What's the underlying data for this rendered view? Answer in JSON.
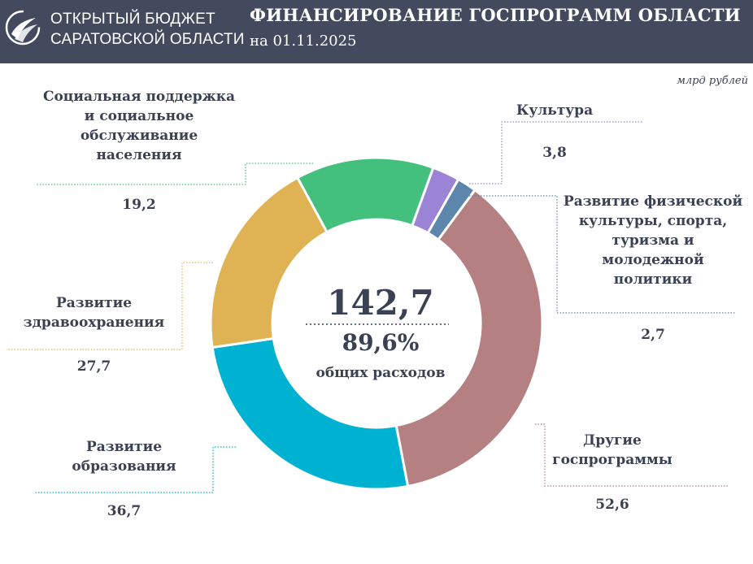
{
  "header": {
    "brand_line1": "ОТКРЫТЫЙ БЮДЖЕТ",
    "brand_line2": "САРАТОВСКОЙ ОБЛАСТИ",
    "title": "ФИНАНСИРОВАНИЕ ГОСПРОГРАММ ОБЛАСТИ",
    "subtitle": "на 01.11.2025",
    "logo_icon": "swirl-logo-icon",
    "background_color": "#434a5e"
  },
  "center": {
    "total": "142,7",
    "share": "89,6%",
    "share_caption": "общих расходов"
  },
  "chart_data": {
    "type": "pie",
    "variant": "donut",
    "unit": "млрд рублей",
    "total": 142.7,
    "slices": [
      {
        "label": "Культура",
        "value": 3.8,
        "display_value": "3,8",
        "color": "#9b84d6"
      },
      {
        "label": "Развитие физической\nкультуры, спорта,\nтуризма и\nмолодежной\nполитики",
        "value": 2.7,
        "display_value": "2,7",
        "color": "#5d86ad"
      },
      {
        "label": "Другие\nгоспрограммы",
        "value": 52.6,
        "display_value": "52,6",
        "color": "#b48082"
      },
      {
        "label": "Развитие\nобразования",
        "value": 36.7,
        "display_value": "36,7",
        "color": "#00b2d2"
      },
      {
        "label": "Развитие\nздравоохранения",
        "value": 27.7,
        "display_value": "27,7",
        "color": "#dfb354"
      },
      {
        "label": "Социальная поддержка\nи социальное\nобслуживание\nнаселения",
        "value": 19.2,
        "display_value": "19,2",
        "color": "#43bf7e"
      }
    ]
  }
}
